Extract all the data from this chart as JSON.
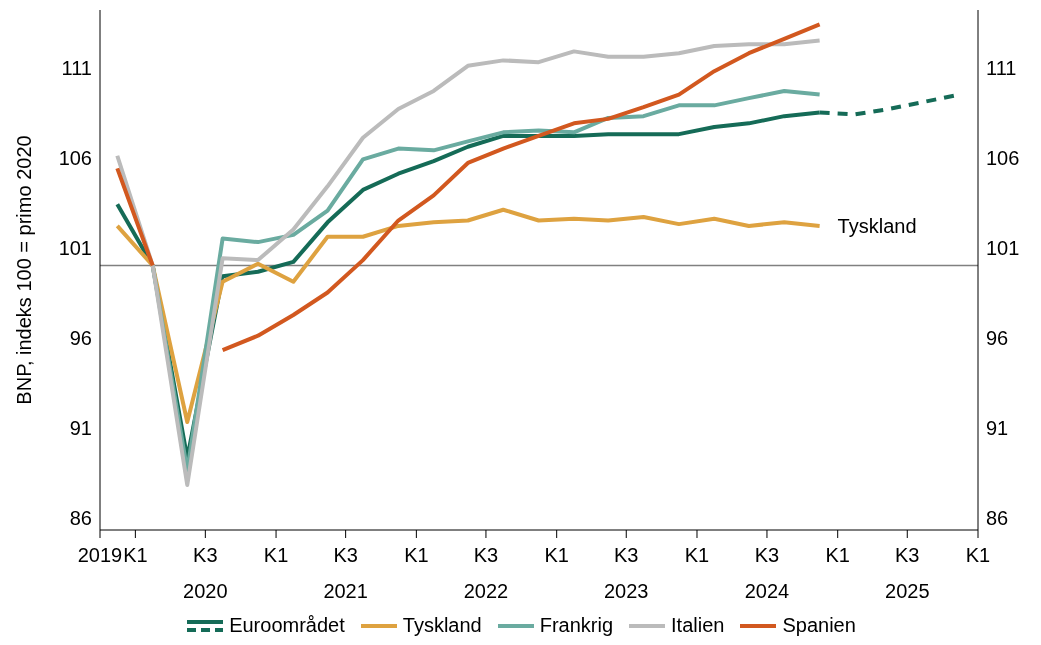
{
  "chart_data": {
    "type": "line",
    "ylabel": "BNP, indeks 100 = primo 2020",
    "x": [
      "2019-11-15",
      "2020-02-15",
      "2020-05-15",
      "2020-08-15",
      "2020-11-15",
      "2021-02-15",
      "2021-05-15",
      "2021-08-15",
      "2021-11-15",
      "2022-02-15",
      "2022-05-15",
      "2022-08-15",
      "2022-11-15",
      "2023-02-15",
      "2023-05-15",
      "2023-08-15",
      "2023-11-15",
      "2024-02-15",
      "2024-05-15",
      "2024-08-15",
      "2024-11-15",
      "2025-02-15",
      "2025-05-15",
      "2025-08-15",
      "2025-11-15"
    ],
    "series": [
      {
        "name": "Euroområdet",
        "color": "#156b57",
        "line_style": "solid",
        "values": [
          103.4,
          100,
          89.3,
          99.4,
          99.65,
          100.2,
          102.4,
          104.2,
          105.1,
          105.8,
          106.6,
          107.2,
          107.2,
          107.2,
          107.3,
          107.3,
          107.3,
          107.7,
          107.9,
          108.3,
          108.5,
          null,
          null,
          null,
          null
        ]
      },
      {
        "color": "#156b57",
        "line_style": "dashed",
        "values": [
          null,
          null,
          null,
          null,
          null,
          null,
          null,
          null,
          null,
          null,
          null,
          null,
          null,
          null,
          null,
          null,
          null,
          null,
          null,
          null,
          108.5,
          108.4,
          108.7,
          109.1,
          109.5
        ]
      },
      {
        "name": "Tyskland",
        "color": "#dea240",
        "line_style": "solid",
        "values": [
          102.2,
          100,
          91.3,
          99.1,
          100.1,
          99.1,
          101.6,
          101.6,
          102.2,
          102.4,
          102.5,
          103.1,
          102.5,
          102.6,
          102.5,
          102.7,
          102.3,
          102.6,
          102.2,
          102.4,
          102.2,
          null,
          null,
          null,
          null
        ]
      },
      {
        "name": "Frankrig",
        "color": "#6aaba0",
        "line_style": "solid",
        "values": [
          null,
          100,
          88.6,
          101.5,
          101.3,
          101.7,
          103.05,
          105.9,
          106.5,
          106.4,
          106.9,
          107.4,
          107.5,
          107.4,
          108.2,
          108.3,
          108.9,
          108.9,
          109.3,
          109.7,
          109.5,
          null,
          null,
          null,
          null
        ]
      },
      {
        "name": "Italien",
        "color": "#bbbbbb",
        "line_style": "solid",
        "values": [
          106.1,
          100,
          87.8,
          100.4,
          100.3,
          102.0,
          104.4,
          107.1,
          108.7,
          109.7,
          111.1,
          111.4,
          111.3,
          111.9,
          111.6,
          111.6,
          111.8,
          112.2,
          112.3,
          112.3,
          112.5,
          null,
          null,
          null,
          null
        ]
      },
      {
        "name": "Spanien",
        "color": "#d2581f",
        "line_style": "solid",
        "values": [
          105.4,
          100,
          null,
          95.3,
          96.1,
          97.25,
          98.5,
          100.3,
          102.5,
          103.9,
          105.7,
          106.5,
          107.2,
          107.9,
          108.15,
          108.8,
          109.5,
          110.8,
          111.8,
          112.6,
          113.4,
          null,
          null,
          null,
          null
        ]
      }
    ],
    "xlim": [
      "2019-10-01",
      "2026-01-01"
    ],
    "xticks": [
      {
        "value": "2019-10-01",
        "label": "2019"
      },
      {
        "value": "2020-01-01",
        "label": "K1"
      },
      {
        "value": "2020-07-01",
        "label": "K3\n2020"
      },
      {
        "value": "2021-01-01",
        "label": "K1"
      },
      {
        "value": "2021-07-01",
        "label": "K3\n2021"
      },
      {
        "value": "2022-01-01",
        "label": "K1"
      },
      {
        "value": "2022-07-01",
        "label": "K3\n2022"
      },
      {
        "value": "2023-01-01",
        "label": "K1"
      },
      {
        "value": "2023-07-01",
        "label": "K3\n2023"
      },
      {
        "value": "2024-01-01",
        "label": "K1"
      },
      {
        "value": "2024-07-01",
        "label": "K3\n2024"
      },
      {
        "value": "2025-01-01",
        "label": "K1"
      },
      {
        "value": "2025-07-01",
        "label": "K3\n2025"
      },
      {
        "value": "2026-01-01",
        "label": "K1"
      }
    ],
    "ylim": [
      85.3,
      114.2
    ],
    "yticks": [
      86,
      91,
      96,
      101,
      106,
      111
    ],
    "y2lim": [
      85.3,
      114.2
    ],
    "y2ticks": [
      86,
      91,
      96,
      101,
      106,
      111
    ],
    "ref_lines": [
      {
        "axis": "y",
        "value": 100,
        "color": "#808080"
      }
    ],
    "annotations": [
      {
        "text": "Tyskland",
        "x": "2024-11-15",
        "y": 102.2
      }
    ],
    "grid": false,
    "legend": "bottom",
    "marker": "none"
  }
}
